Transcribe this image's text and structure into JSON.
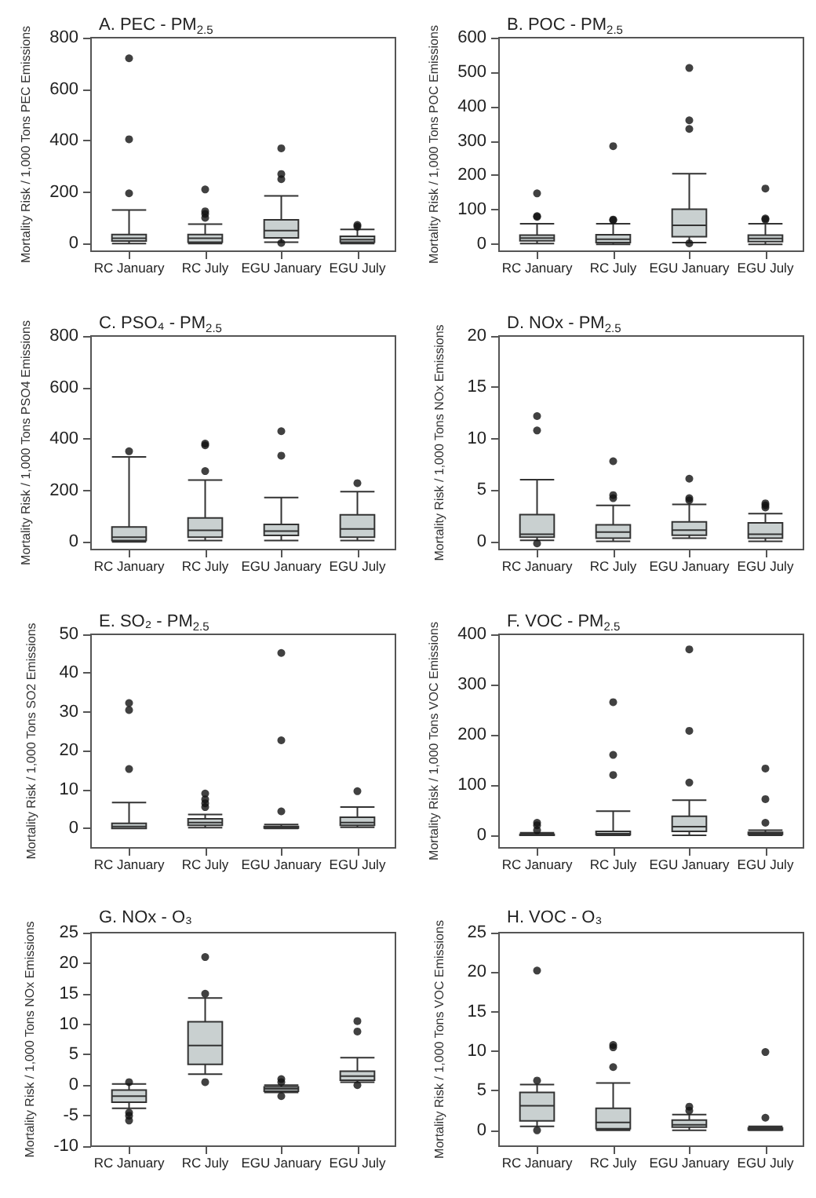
{
  "chart_data": [
    {
      "type": "box",
      "title": "A. PEC - PM$_{2.5}$",
      "ylabel": "Mortality Risk / 1,000 Tons PEC Emissions",
      "categories": [
        "RC January",
        "RC July",
        "EGU January",
        "EGU July"
      ],
      "color": "#c9d0d0",
      "ylim": [
        -30,
        800
      ],
      "yticks": [
        0,
        200,
        400,
        600,
        800
      ],
      "grid": false,
      "boxes": [
        {
          "low": 0,
          "q1": 10,
          "median": 20,
          "q3": 35,
          "high": 130,
          "outliers": [
            195,
            405,
            720
          ]
        },
        {
          "low": 0,
          "q1": 5,
          "median": 20,
          "q3": 35,
          "high": 75,
          "outliers": [
            100,
            115,
            125,
            210
          ]
        },
        {
          "low": 5,
          "q1": 22,
          "median": 50,
          "q3": 92,
          "high": 185,
          "outliers": [
            2,
            250,
            270,
            370
          ]
        },
        {
          "low": 0,
          "q1": 5,
          "median": 15,
          "q3": 28,
          "high": 55,
          "outliers": [
            65,
            72
          ]
        }
      ]
    },
    {
      "type": "box",
      "title": "B. POC - PM$_{2.5}$",
      "ylabel": "Mortality Risk / 1,000 Tons POC Emissions",
      "categories": [
        "RC January",
        "RC July",
        "EGU January",
        "EGU July"
      ],
      "color": "#c9d0d0",
      "ylim": [
        -20,
        600
      ],
      "yticks": [
        0,
        100,
        200,
        300,
        400,
        500,
        600
      ],
      "grid": false,
      "boxes": [
        {
          "low": 2,
          "q1": 10,
          "median": 18,
          "q3": 27,
          "high": 60,
          "outliers": [
            80,
            82,
            148
          ]
        },
        {
          "low": 0,
          "q1": 5,
          "median": 15,
          "q3": 28,
          "high": 60,
          "outliers": [
            70,
            72,
            285
          ]
        },
        {
          "low": 5,
          "q1": 22,
          "median": 55,
          "q3": 102,
          "high": 205,
          "outliers": [
            3,
            335,
            360,
            512
          ]
        },
        {
          "low": 0,
          "q1": 8,
          "median": 17,
          "q3": 27,
          "high": 60,
          "outliers": [
            72,
            75,
            162
          ]
        }
      ]
    },
    {
      "type": "box",
      "title": "C. PSO₄ - PM$_{2.5}$",
      "ylabel": "Mortality Risk / 1,000 Tons PSO4 Emissions",
      "categories": [
        "RC January",
        "RC July",
        "EGU January",
        "EGU July"
      ],
      "color": "#c9d0d0",
      "ylim": [
        -30,
        800
      ],
      "yticks": [
        0,
        200,
        400,
        600,
        800
      ],
      "grid": false,
      "boxes": [
        {
          "low": 0,
          "q1": 5,
          "median": 18,
          "q3": 58,
          "high": 330,
          "outliers": [
            352
          ]
        },
        {
          "low": 5,
          "q1": 18,
          "median": 45,
          "q3": 93,
          "high": 240,
          "outliers": [
            275,
            375,
            382
          ]
        },
        {
          "low": 5,
          "q1": 25,
          "median": 42,
          "q3": 68,
          "high": 172,
          "outliers": [
            335,
            430
          ]
        },
        {
          "low": 5,
          "q1": 18,
          "median": 50,
          "q3": 105,
          "high": 195,
          "outliers": [
            228
          ]
        }
      ]
    },
    {
      "type": "box",
      "title": "D. NOx - PM$_{2.5}$",
      "ylabel": "Mortality Risk / 1,000 Tons NOx Emissions",
      "categories": [
        "RC January",
        "RC July",
        "EGU January",
        "EGU July"
      ],
      "color": "#c9d0d0",
      "ylim": [
        -0.8,
        20
      ],
      "yticks": [
        0,
        5,
        10,
        15,
        20
      ],
      "grid": false,
      "boxes": [
        {
          "low": 0.1,
          "q1": 0.4,
          "median": 0.7,
          "q3": 2.6,
          "high": 6,
          "outliers": [
            -0.2,
            10.8,
            12.2
          ]
        },
        {
          "low": 0,
          "q1": 0.3,
          "median": 0.9,
          "q3": 1.6,
          "high": 3.5,
          "outliers": [
            4.2,
            4.5,
            7.8
          ]
        },
        {
          "low": 0.3,
          "q1": 0.6,
          "median": 1.1,
          "q3": 1.9,
          "high": 3.6,
          "outliers": [
            4,
            4.2,
            6.1
          ]
        },
        {
          "low": 0,
          "q1": 0.3,
          "median": 0.7,
          "q3": 1.8,
          "high": 2.7,
          "outliers": [
            3.3,
            3.5,
            3.7
          ]
        }
      ]
    },
    {
      "type": "box",
      "title": "E. SO₂ - PM$_{2.5}$",
      "ylabel": "Mortality Risk / 1,000 Tons SO2 Emissions",
      "categories": [
        "RC January",
        "RC July",
        "EGU January",
        "EGU July"
      ],
      "color": "#c9d0d0",
      "ylim": [
        -5,
        50
      ],
      "yticks": [
        0,
        10,
        20,
        30,
        40,
        50
      ],
      "grid": false,
      "boxes": [
        {
          "low": 0,
          "q1": 0,
          "median": 0.5,
          "q3": 1.3,
          "high": 6.7,
          "outliers": [
            15.3,
            30.5,
            32.3
          ]
        },
        {
          "low": 0.2,
          "q1": 0.8,
          "median": 1.5,
          "q3": 2.5,
          "high": 3.6,
          "outliers": [
            5.5,
            6.5,
            7.5,
            9
          ]
        },
        {
          "low": 0,
          "q1": 0.1,
          "median": 0.3,
          "q3": 0.5,
          "high": 1,
          "outliers": [
            4.4,
            22.7,
            45.2
          ]
        },
        {
          "low": 0.3,
          "q1": 0.8,
          "median": 1.5,
          "q3": 2.9,
          "high": 5.5,
          "outliers": [
            9.6
          ]
        }
      ]
    },
    {
      "type": "box",
      "title": "F. VOC - PM$_{2.5}$",
      "ylabel": "Mortality Risk / 1,000 Tons VOC Emissions",
      "categories": [
        "RC January",
        "RC July",
        "EGU January",
        "EGU July"
      ],
      "color": "#c9d0d0",
      "ylim": [
        -25,
        400
      ],
      "yticks": [
        0,
        100,
        200,
        300,
        400
      ],
      "grid": false,
      "boxes": [
        {
          "low": 0,
          "q1": 0,
          "median": 1,
          "q3": 2,
          "high": 5,
          "outliers": [
            10,
            20,
            25
          ]
        },
        {
          "low": 0,
          "q1": 1,
          "median": 3,
          "q3": 8,
          "high": 48,
          "outliers": [
            120,
            160,
            265
          ]
        },
        {
          "low": 0,
          "q1": 8,
          "median": 17,
          "q3": 38,
          "high": 70,
          "outliers": [
            105,
            208,
            370
          ]
        },
        {
          "low": 0,
          "q1": 2,
          "median": 4,
          "q3": 6,
          "high": 10,
          "outliers": [
            25,
            72,
            133
          ]
        }
      ]
    },
    {
      "type": "box",
      "title": "G. NOx - O₃",
      "ylabel": "Mortality Risk / 1,000 Tons NOx Emissions",
      "categories": [
        "RC January",
        "RC July",
        "EGU January",
        "EGU July"
      ],
      "color": "#c9d0d0",
      "ylim": [
        -10,
        25
      ],
      "yticks": [
        -10,
        -5,
        0,
        5,
        10,
        15,
        20,
        25
      ],
      "grid": false,
      "boxes": [
        {
          "low": -3.8,
          "q1": -2.8,
          "median": -1.8,
          "q3": -0.8,
          "high": 0.2,
          "outliers": [
            -5.8,
            -5,
            -4.5,
            0.5
          ]
        },
        {
          "low": 1.8,
          "q1": 3.4,
          "median": 6.5,
          "q3": 10.4,
          "high": 14.3,
          "outliers": [
            0.5,
            15,
            21
          ]
        },
        {
          "low": -1.2,
          "q1": -1,
          "median": -0.6,
          "q3": -0.3,
          "high": 0,
          "outliers": [
            -1.8,
            0.5,
            1
          ]
        },
        {
          "low": 0.5,
          "q1": 0.8,
          "median": 1.5,
          "q3": 2.3,
          "high": 4.5,
          "outliers": [
            0,
            8.8,
            10.5
          ]
        }
      ]
    },
    {
      "type": "box",
      "title": "H. VOC - O₃",
      "ylabel": "Mortality Risk / 1,000 Tons VOC Emissions",
      "categories": [
        "RC January",
        "RC July",
        "EGU January",
        "EGU July"
      ],
      "color": "#c9d0d0",
      "ylim": [
        -2,
        25
      ],
      "yticks": [
        0,
        5,
        10,
        15,
        20,
        25
      ],
      "grid": false,
      "boxes": [
        {
          "low": 0.5,
          "q1": 1.2,
          "median": 3.1,
          "q3": 4.8,
          "high": 5.8,
          "outliers": [
            0,
            6.3,
            20.2
          ]
        },
        {
          "low": 0,
          "q1": 0.2,
          "median": 1,
          "q3": 2.8,
          "high": 6,
          "outliers": [
            8,
            10.5,
            10.8
          ]
        },
        {
          "low": 0,
          "q1": 0.4,
          "median": 0.7,
          "q3": 1.3,
          "high": 2,
          "outliers": [
            2.5,
            3
          ]
        },
        {
          "low": 0,
          "q1": 0.05,
          "median": 0.1,
          "q3": 0.3,
          "high": 0.5,
          "outliers": [
            1.6,
            9.9
          ]
        }
      ]
    }
  ]
}
